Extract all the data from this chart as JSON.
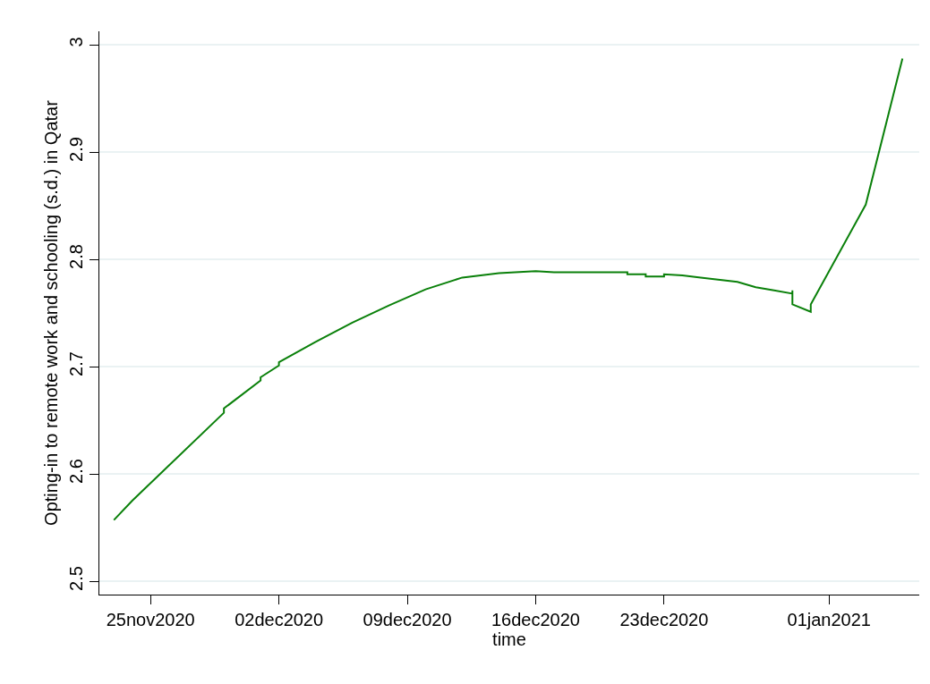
{
  "chart_data": {
    "type": "line",
    "xlabel": "time",
    "ylabel": "Opting-in to remote work and schooling (s.d.) in Qatar",
    "x": [
      "2020-11-23",
      "2020-11-24",
      "2020-11-29",
      "2020-11-29",
      "2020-12-01",
      "2020-12-01",
      "2020-12-02",
      "2020-12-02",
      "2020-12-04",
      "2020-12-06",
      "2020-12-08",
      "2020-12-10",
      "2020-12-12",
      "2020-12-14",
      "2020-12-16",
      "2020-12-17",
      "2020-12-20",
      "2020-12-21",
      "2020-12-21",
      "2020-12-22",
      "2020-12-22",
      "2020-12-23",
      "2020-12-23",
      "2020-12-24",
      "2020-12-25",
      "2020-12-27",
      "2020-12-28",
      "2020-12-29",
      "2020-12-30",
      "2020-12-30",
      "2020-12-30",
      "2020-12-31",
      "2020-12-31",
      "2021-01-03",
      "2021-01-05"
    ],
    "series": [
      {
        "color": "#0a800a",
        "values": [
          2.557,
          2.575,
          2.657,
          2.661,
          2.687,
          2.69,
          2.701,
          2.704,
          2.723,
          2.741,
          2.757,
          2.772,
          2.783,
          2.787,
          2.789,
          2.788,
          2.788,
          2.788,
          2.786,
          2.786,
          2.784,
          2.784,
          2.786,
          2.785,
          2.783,
          2.779,
          2.774,
          2.771,
          2.768,
          2.771,
          2.758,
          2.751,
          2.758,
          2.851,
          2.987
        ]
      }
    ],
    "xlim": [
      "2020-11-22T05:00",
      "2021-01-05T22:00"
    ],
    "xticks": [
      {
        "value": "2020-11-25",
        "label": "25nov2020"
      },
      {
        "value": "2020-12-02",
        "label": "02dec2020"
      },
      {
        "value": "2020-12-09",
        "label": "09dec2020"
      },
      {
        "value": "2020-12-16",
        "label": "16dec2020"
      },
      {
        "value": "2020-12-23",
        "label": "23dec2020"
      },
      {
        "value": "2021-01-01",
        "label": "01jan2021"
      }
    ],
    "ylim": [
      2.4875,
      3.0125
    ],
    "yticks": [
      {
        "value": 2.5,
        "label": "2.5"
      },
      {
        "value": 2.6,
        "label": "2.6"
      },
      {
        "value": 2.7,
        "label": "2.7"
      },
      {
        "value": 2.8,
        "label": "2.8"
      },
      {
        "value": 2.9,
        "label": "2.9"
      },
      {
        "value": 3,
        "label": "3"
      }
    ],
    "grid": "y",
    "legend": false,
    "marker": "none",
    "line_style": "solid"
  }
}
